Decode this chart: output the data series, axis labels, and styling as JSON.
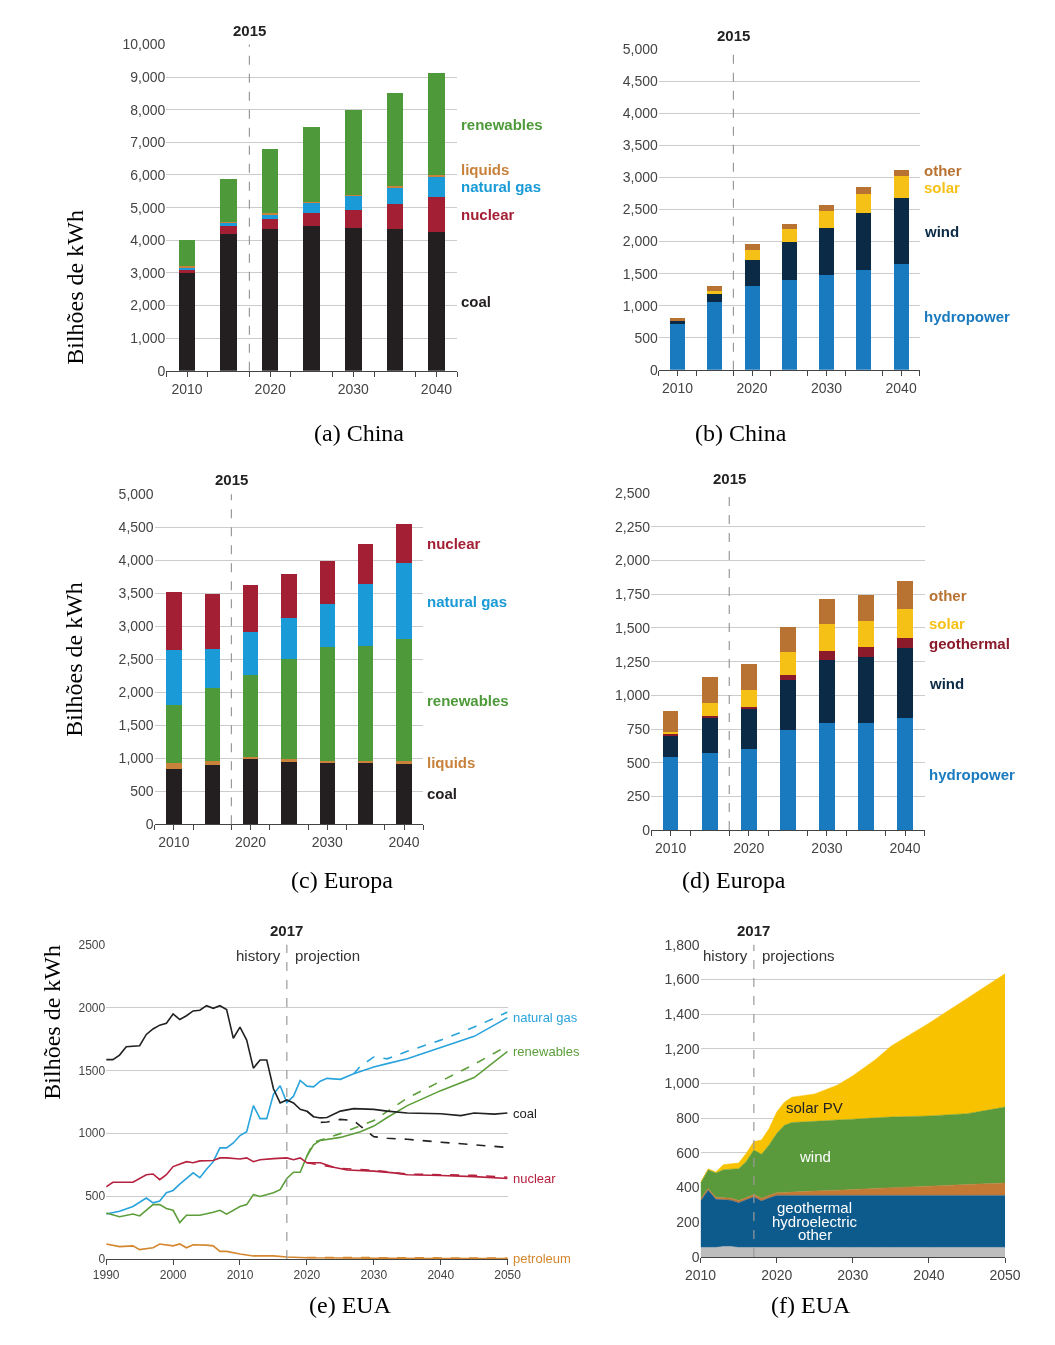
{
  "chart_data": [
    {
      "type": "bar",
      "title": "(a) China",
      "ylabel": "Bilhões de kWh",
      "stacked": true,
      "grid": "y",
      "x": [
        2010,
        2015,
        2020,
        2025,
        2030,
        2035,
        2040
      ],
      "series": [
        {
          "name": "coal",
          "color": "#231f20",
          "values": [
            3000,
            4200,
            4350,
            4430,
            4380,
            4350,
            4260
          ]
        },
        {
          "name": "nuclear",
          "color": "#a31f34",
          "values": [
            100,
            240,
            300,
            410,
            560,
            760,
            1060
          ]
        },
        {
          "name": "natural gas",
          "color": "#1a9ad6",
          "values": [
            80,
            120,
            160,
            320,
            430,
            530,
            660
          ]
        },
        {
          "name": "liquids",
          "color": "#c8823c",
          "values": [
            20,
            10,
            10,
            10,
            10,
            10,
            10
          ]
        },
        {
          "name": "renewables",
          "color": "#4e9a3a",
          "values": [
            800,
            1300,
            1980,
            2290,
            2600,
            2860,
            3130
          ]
        }
      ],
      "xlim": [
        2007.5,
        2042.5
      ],
      "xticks": [
        {
          "value": 2007.5,
          "label": null
        },
        2010,
        {
          "value": 2012.5,
          "label": null
        },
        {
          "value": 2017.5,
          "label": null
        },
        2020,
        {
          "value": 2022.5,
          "label": null
        },
        {
          "value": 2027.5,
          "label": null
        },
        2030,
        {
          "value": 2032.5,
          "label": null
        },
        {
          "value": 2037.5,
          "label": null
        },
        2040,
        {
          "value": 2042.5,
          "label": null
        }
      ],
      "ylim": [
        0,
        10000
      ],
      "yticks": [
        0,
        {
          "value": 1000,
          "label": "1,000"
        },
        {
          "value": 2000,
          "label": "2,000"
        },
        {
          "value": 3000,
          "label": "3,000"
        },
        {
          "value": 4000,
          "label": "4,000"
        },
        {
          "value": 5000,
          "label": "5,000"
        },
        {
          "value": 6000,
          "label": "6,000"
        },
        {
          "value": 7000,
          "label": "7,000"
        },
        {
          "value": 8000,
          "label": "8,000"
        },
        {
          "value": 9000,
          "label": "9,000"
        },
        {
          "value": 10000,
          "label": "10,000"
        }
      ],
      "ref_lines": [
        {
          "axis": "x",
          "value": 2017.5,
          "color": "#999999",
          "line_style": "dashed"
        }
      ],
      "annotations": [
        "2015"
      ]
    },
    {
      "type": "bar",
      "title": "(b) China",
      "stacked": true,
      "grid": "y",
      "x": [
        2010,
        2015,
        2020,
        2025,
        2030,
        2035,
        2040
      ],
      "series": [
        {
          "name": "hydropower",
          "color": "#1a7abf",
          "values": [
            720,
            1050,
            1300,
            1400,
            1480,
            1560,
            1650
          ]
        },
        {
          "name": "wind",
          "color": "#0b2a45",
          "values": [
            50,
            150,
            420,
            590,
            740,
            880,
            1030
          ]
        },
        {
          "name": "solar",
          "color": "#f5c116",
          "values": [
            10,
            30,
            150,
            200,
            250,
            300,
            340
          ]
        },
        {
          "name": "other",
          "color": "#b87333",
          "values": [
            20,
            70,
            100,
            90,
            100,
            110,
            100
          ]
        }
      ],
      "xlim": [
        2007.5,
        2042.5
      ],
      "xticks": [
        {
          "value": 2007.5,
          "label": null
        },
        2010,
        {
          "value": 2012.5,
          "label": null
        },
        {
          "value": 2017.5,
          "label": null
        },
        2020,
        {
          "value": 2022.5,
          "label": null
        },
        {
          "value": 2027.5,
          "label": null
        },
        2030,
        {
          "value": 2032.5,
          "label": null
        },
        {
          "value": 2037.5,
          "label": null
        },
        2040,
        {
          "value": 2042.5,
          "label": null
        }
      ],
      "ylim": [
        0,
        5000
      ],
      "yticks": [
        0,
        500,
        {
          "value": 1000,
          "label": "1,000"
        },
        {
          "value": 1500,
          "label": "1,500"
        },
        {
          "value": 2000,
          "label": "2,000"
        },
        {
          "value": 2500,
          "label": "2,500"
        },
        {
          "value": 3000,
          "label": "3,000"
        },
        {
          "value": 3500,
          "label": "3,500"
        },
        {
          "value": 4000,
          "label": "4,000"
        },
        {
          "value": 4500,
          "label": "4,500"
        },
        {
          "value": 5000,
          "label": "5,000"
        }
      ],
      "ref_lines": [
        {
          "axis": "x",
          "value": 2017.5,
          "color": "#999999",
          "line_style": "dashed"
        }
      ],
      "annotations": [
        "2015"
      ]
    },
    {
      "type": "bar",
      "title": "(c) Europa",
      "ylabel": "Bilhões de kWh",
      "stacked": true,
      "grid": "y",
      "x": [
        2010,
        2015,
        2020,
        2025,
        2030,
        2035,
        2040
      ],
      "series": [
        {
          "name": "coal",
          "color": "#231f20",
          "values": [
            840,
            890,
            980,
            940,
            920,
            920,
            920
          ]
        },
        {
          "name": "liquids",
          "color": "#c8823c",
          "values": [
            90,
            60,
            40,
            40,
            40,
            40,
            30
          ]
        },
        {
          "name": "renewables",
          "color": "#4e9a3a",
          "values": [
            870,
            1110,
            1240,
            1520,
            1720,
            1740,
            1850
          ]
        },
        {
          "name": "natural gas",
          "color": "#1a9ad6",
          "values": [
            840,
            600,
            650,
            630,
            660,
            940,
            1150
          ]
        },
        {
          "name": "nuclear",
          "color": "#a31f34",
          "values": [
            870,
            830,
            710,
            660,
            650,
            610,
            600
          ]
        }
      ],
      "xlim": [
        2007.5,
        2042.5
      ],
      "xticks": [
        {
          "value": 2007.5,
          "label": null
        },
        2010,
        {
          "value": 2012.5,
          "label": null
        },
        {
          "value": 2017.5,
          "label": null
        },
        2020,
        {
          "value": 2022.5,
          "label": null
        },
        {
          "value": 2027.5,
          "label": null
        },
        2030,
        {
          "value": 2032.5,
          "label": null
        },
        {
          "value": 2037.5,
          "label": null
        },
        2040,
        {
          "value": 2042.5,
          "label": null
        }
      ],
      "ylim": [
        0,
        5000
      ],
      "yticks": [
        0,
        500,
        {
          "value": 1000,
          "label": "1,000"
        },
        {
          "value": 1500,
          "label": "1,500"
        },
        {
          "value": 2000,
          "label": "2,000"
        },
        {
          "value": 2500,
          "label": "2,500"
        },
        {
          "value": 3000,
          "label": "3,000"
        },
        {
          "value": 3500,
          "label": "3,500"
        },
        {
          "value": 4000,
          "label": "4,000"
        },
        {
          "value": 4500,
          "label": "4,500"
        },
        {
          "value": 5000,
          "label": "5,000"
        }
      ],
      "ref_lines": [
        {
          "axis": "x",
          "value": 2017.5,
          "color": "#999999",
          "line_style": "dashed"
        }
      ],
      "annotations": [
        "2015"
      ]
    },
    {
      "type": "bar",
      "title": "(d) Europa",
      "stacked": true,
      "grid": "y",
      "x": [
        2010,
        2015,
        2020,
        2025,
        2030,
        2035,
        2040
      ],
      "series": [
        {
          "name": "hydropower",
          "color": "#1a7abf",
          "values": [
            545,
            570,
            600,
            740,
            795,
            795,
            830
          ]
        },
        {
          "name": "wind",
          "color": "#0b2a45",
          "values": [
            155,
            265,
            300,
            375,
            465,
            490,
            520
          ]
        },
        {
          "name": "geothermal",
          "color": "#8b1a2b",
          "values": [
            10,
            13,
            17,
            37,
            68,
            70,
            75
          ]
        },
        {
          "name": "solar",
          "color": "#f5c116",
          "values": [
            20,
            98,
            123,
            172,
            200,
            200,
            215
          ]
        },
        {
          "name": "other",
          "color": "#b87333",
          "values": [
            150,
            187,
            190,
            185,
            190,
            190,
            205
          ]
        }
      ],
      "xlim": [
        2007.5,
        2042.5
      ],
      "xticks": [
        {
          "value": 2007.5,
          "label": null
        },
        2010,
        {
          "value": 2012.5,
          "label": null
        },
        {
          "value": 2017.5,
          "label": null
        },
        2020,
        {
          "value": 2022.5,
          "label": null
        },
        {
          "value": 2027.5,
          "label": null
        },
        2030,
        {
          "value": 2032.5,
          "label": null
        },
        {
          "value": 2037.5,
          "label": null
        },
        2040,
        {
          "value": 2042.5,
          "label": null
        }
      ],
      "ylim": [
        0,
        2500
      ],
      "yticks": [
        0,
        250,
        500,
        750,
        {
          "value": 1000,
          "label": "1,000"
        },
        {
          "value": 1250,
          "label": "1,250"
        },
        {
          "value": 1500,
          "label": "1,500"
        },
        {
          "value": 1750,
          "label": "1,750"
        },
        {
          "value": 2000,
          "label": "2,000"
        },
        {
          "value": 2250,
          "label": "2,250"
        },
        {
          "value": 2500,
          "label": "2,500"
        }
      ],
      "ref_lines": [
        {
          "axis": "x",
          "value": 2017.5,
          "color": "#999999",
          "line_style": "dashed"
        }
      ],
      "annotations": [
        "2015"
      ]
    },
    {
      "type": "line",
      "title": "(e) EUA",
      "ylabel": "Bilhões de kWh",
      "grid": "y",
      "marker": "none",
      "series": [
        {
          "name": "natural gas",
          "color": "#29a3dc",
          "line_style": "solid",
          "x": [
            1990,
            1992,
            1994,
            1996,
            1997,
            1998,
            1999,
            2000,
            2001,
            2003,
            2004,
            2005,
            2006,
            2007,
            2008,
            2009,
            2010,
            2011,
            2012,
            2013,
            2014,
            2015,
            2016,
            2017,
            2018,
            2019,
            2020,
            2021,
            2022,
            2023,
            2025,
            2027,
            2030,
            2032,
            2035,
            2040,
            2045,
            2050
          ],
          "values": [
            357,
            380,
            417,
            485,
            446,
            461,
            527,
            545,
            595,
            685,
            646,
            714,
            774,
            884,
            884,
            923,
            982,
            1012,
            1220,
            1116,
            1116,
            1310,
            1378,
            1244,
            1295,
            1420,
            1375,
            1369,
            1414,
            1437,
            1429,
            1473,
            1527,
            1554,
            1592,
            1682,
            1771,
            1920
          ]
        },
        {
          "color": "#29a3dc",
          "line_style": "dashed",
          "x": [
            2027,
            2028,
            2030,
            2032,
            2035,
            2040,
            2045,
            2050
          ],
          "values": [
            1473,
            1533,
            1607,
            1592,
            1652,
            1741,
            1845,
            1964
          ]
        },
        {
          "name": "renewables",
          "color": "#5c9e3a",
          "line_style": "solid",
          "x": [
            1990,
            1992,
            1994,
            1995,
            1997,
            1998,
            1999,
            2000,
            2001,
            2002,
            2004,
            2006,
            2007,
            2008,
            2010,
            2011,
            2012,
            2013,
            2015,
            2016,
            2017,
            2018,
            2019,
            2020,
            2021,
            2022,
            2025,
            2028,
            2030,
            2032,
            2035,
            2040,
            2045,
            2050
          ],
          "values": [
            366,
            336,
            357,
            342,
            432,
            432,
            402,
            387,
            289,
            348,
            348,
            372,
            387,
            357,
            417,
            432,
            512,
            497,
            527,
            551,
            640,
            690,
            690,
            818,
            908,
            943,
            967,
            1012,
            1057,
            1125,
            1220,
            1339,
            1443,
            1652
          ]
        },
        {
          "color": "#5c9e3a",
          "line_style": "dashed",
          "x": [
            2020,
            2021,
            2025,
            2030,
            2035,
            2040,
            2045,
            2050
          ],
          "values": [
            818,
            929,
            997,
            1101,
            1280,
            1414,
            1548,
            1696
          ]
        },
        {
          "name": "coal",
          "color": "#222222",
          "line_style": "solid",
          "x": [
            1990,
            1991,
            1992,
            1993,
            1995,
            1996,
            1997,
            1998,
            1999,
            2000,
            2001,
            2002,
            2003,
            2004,
            2005,
            2006,
            2007,
            2008,
            2009,
            2010,
            2011,
            2012,
            2013,
            2014,
            2015,
            2016,
            2017,
            2018,
            2019,
            2020,
            2021,
            2022,
            2023,
            2025,
            2027,
            2030,
            2032,
            2035,
            2040,
            2043,
            2045,
            2048,
            2050
          ],
          "values": [
            1586,
            1586,
            1622,
            1688,
            1696,
            1786,
            1830,
            1860,
            1875,
            1949,
            1905,
            1935,
            1973,
            1979,
            2015,
            1994,
            2015,
            1985,
            1756,
            1845,
            1741,
            1518,
            1583,
            1583,
            1354,
            1241,
            1265,
            1241,
            1190,
            1176,
            1131,
            1122,
            1125,
            1176,
            1196,
            1190,
            1176,
            1161,
            1155,
            1140,
            1161,
            1152,
            1161
          ]
        },
        {
          "color": "#222222",
          "line_style": "dashed",
          "x": [
            2020,
            2022,
            2023,
            2025,
            2027,
            2028,
            2030,
            2032,
            2035,
            2040,
            2045,
            2050
          ],
          "values": [
            1176,
            1086,
            1090,
            1110,
            1101,
            1057,
            973,
            960,
            952,
            929,
            908,
            887
          ]
        },
        {
          "name": "nuclear",
          "color": "#b5213e",
          "line_style": "solid",
          "x": [
            1990,
            1991,
            1993,
            1994,
            1996,
            1997,
            1998,
            1999,
            2000,
            2002,
            2003,
            2004,
            2006,
            2007,
            2008,
            2010,
            2011,
            2012,
            2013,
            2015,
            2017,
            2018,
            2019,
            2020,
            2022,
            2024,
            2026,
            2030,
            2033,
            2035,
            2040,
            2045,
            2050
          ],
          "values": [
            574,
            610,
            610,
            610,
            670,
            676,
            631,
            670,
            735,
            774,
            765,
            780,
            783,
            804,
            804,
            795,
            804,
            774,
            789,
            798,
            804,
            789,
            804,
            765,
            765,
            729,
            708,
            699,
            685,
            670,
            664,
            655,
            640
          ]
        },
        {
          "color": "#b5213e",
          "line_style": "dashed",
          "x": [
            2020,
            2025,
            2030,
            2035,
            2040,
            2045,
            2050
          ],
          "values": [
            765,
            720,
            705,
            675,
            670,
            665,
            650
          ]
        },
        {
          "name": "petroleum",
          "color": "#d4872e",
          "line_style": "solid",
          "x": [
            1990,
            1992,
            1994,
            1995,
            1997,
            1998,
            2000,
            2001,
            2002,
            2003,
            2005,
            2006,
            2007,
            2008,
            2010,
            2012,
            2015,
            2017,
            2020,
            2030,
            2040,
            2050
          ],
          "values": [
            119,
            98,
            104,
            74,
            89,
            119,
            104,
            119,
            89,
            113,
            110,
            104,
            60,
            60,
            39,
            24,
            24,
            15,
            9,
            6,
            3,
            3
          ]
        },
        {
          "color": "#d4872e",
          "line_style": "dashed",
          "x": [
            2020,
            2030,
            2040,
            2050
          ],
          "values": [
            12,
            10,
            8,
            6
          ]
        }
      ],
      "xlim": [
        1990,
        2050
      ],
      "xticks": [
        1990,
        2000,
        2010,
        2020,
        2030,
        2040,
        2050
      ],
      "ylim": [
        0,
        2500
      ],
      "yticks": [
        0,
        500,
        1000,
        1500,
        2000,
        2500
      ],
      "ref_lines": [
        {
          "axis": "x",
          "value": 2017,
          "label": "2017",
          "color": "#999999",
          "line_style": "dashed"
        }
      ],
      "annotations": [
        "history",
        "projection"
      ]
    },
    {
      "type": "area",
      "title": "(f) EUA",
      "stacked": true,
      "grid": "y",
      "x": [
        2010,
        2011,
        2012,
        2013,
        2014,
        2015,
        2016,
        2017,
        2018,
        2019,
        2020,
        2021,
        2022,
        2025,
        2028,
        2030,
        2033,
        2035,
        2040,
        2045,
        2050
      ],
      "series": [
        {
          "name": "other",
          "color": "#bdbdbd",
          "values": [
            55,
            55,
            55,
            60,
            60,
            55,
            55,
            55,
            55,
            55,
            55,
            55,
            55,
            55,
            55,
            55,
            55,
            55,
            55,
            55,
            55
          ]
        },
        {
          "name": "hydroelectric",
          "color": "#0d5a8c",
          "values": [
            268,
            329,
            277,
            270,
            267,
            258,
            275,
            291,
            268,
            285,
            300,
            300,
            300,
            300,
            300,
            300,
            300,
            300,
            300,
            300,
            300
          ]
        },
        {
          "name": "geothermal",
          "color": "#c47a35",
          "values": [
            12,
            11,
            12,
            12,
            12,
            12,
            12,
            14,
            15,
            15,
            15,
            17,
            19,
            25,
            30,
            34,
            40,
            44,
            53,
            63,
            72
          ]
        },
        {
          "name": "wind",
          "color": "#5a9a3c",
          "values": [
            92,
            108,
            140,
            161,
            167,
            184,
            209,
            257,
            254,
            291,
            342,
            387,
            401,
            402,
            405,
            405,
            407,
            408,
            405,
            408,
            437
          ]
        },
        {
          "name": "solar PV",
          "color": "#f9c200",
          "values": [
            3,
            5,
            6,
            29,
            31,
            32,
            47,
            48,
            82,
            94,
            123,
            133,
            146,
            158,
            201,
            250,
            337,
            408,
            535,
            664,
            769
          ]
        }
      ],
      "xlim": [
        2010,
        2050
      ],
      "xticks": [
        2010,
        2020,
        2030,
        2040,
        2050
      ],
      "ylim": [
        0,
        1800
      ],
      "yticks": [
        0,
        200,
        400,
        600,
        800,
        {
          "value": 1000,
          "label": "1,000"
        },
        {
          "value": 1200,
          "label": "1,200"
        },
        {
          "value": 1400,
          "label": "1,400"
        },
        {
          "value": 1600,
          "label": "1,600"
        },
        {
          "value": 1800,
          "label": "1,800"
        }
      ],
      "ref_lines": [
        {
          "axis": "x",
          "value": 2017,
          "label": "2017",
          "color": "#999999",
          "line_style": "dashed"
        }
      ],
      "annotations": [
        "history",
        "projections"
      ]
    }
  ]
}
